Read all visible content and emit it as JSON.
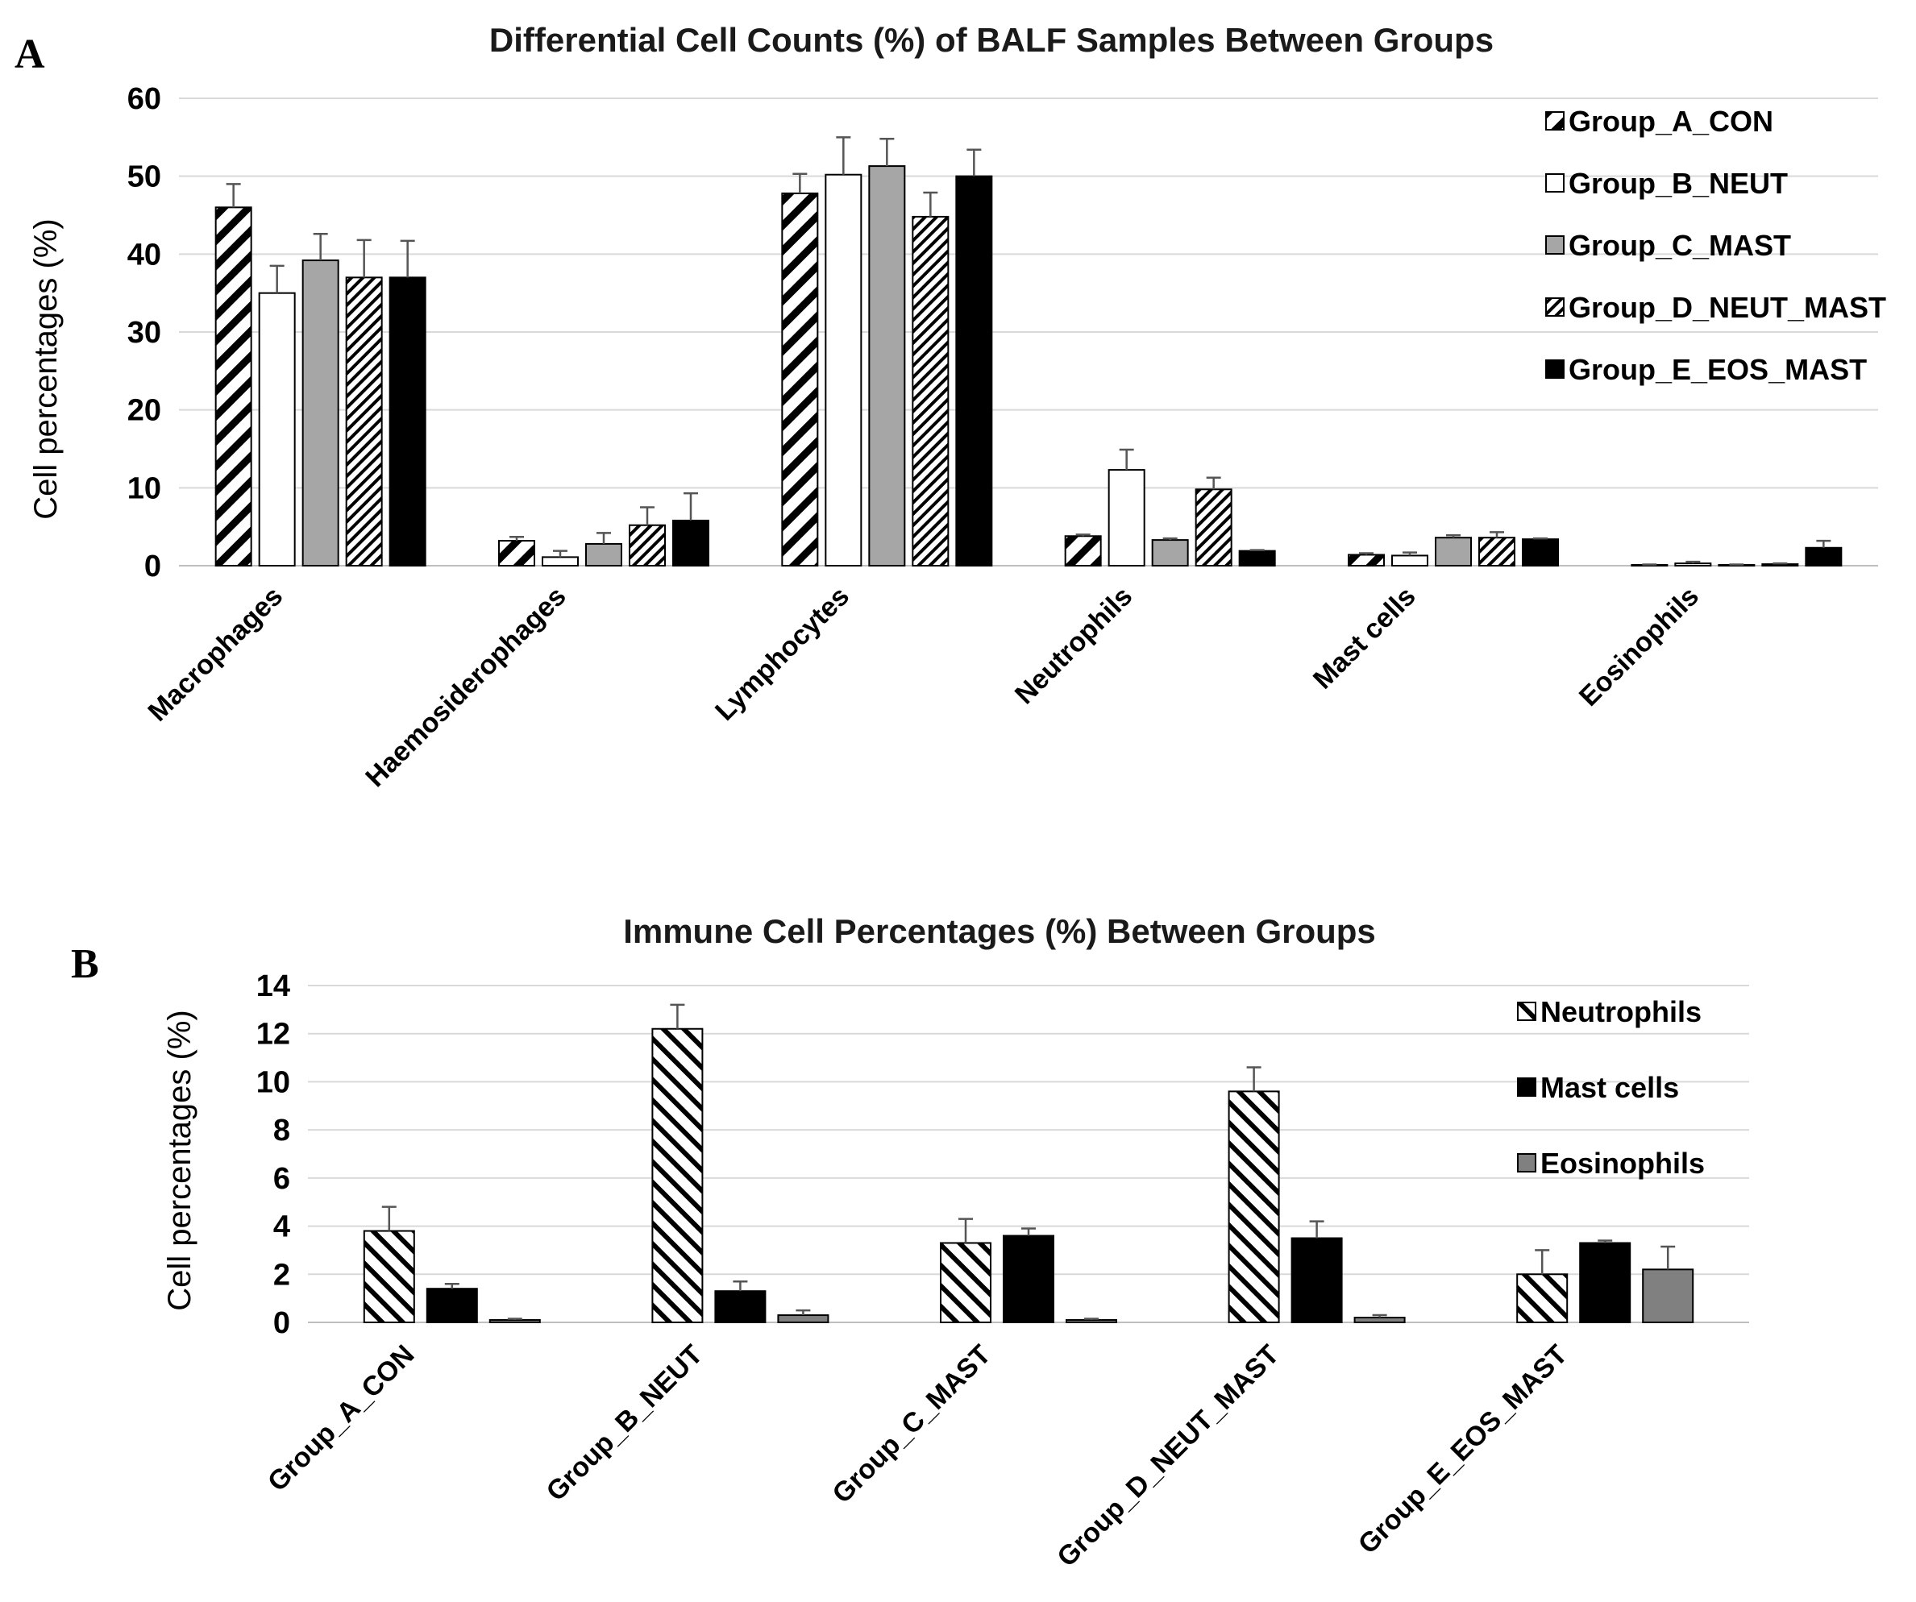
{
  "colors": {
    "group_a": "url(#hatchWide)",
    "group_b": "#ffffff",
    "group_c": "#a6a6a6",
    "group_d": "url(#hatchFine)",
    "group_e": "#000000",
    "neutrophils": "url(#hatchB)",
    "mast": "#000000",
    "eosinophils": "#808080"
  },
  "chart_data": [
    {
      "type": "bar",
      "panel_label": "A",
      "title": "Differential Cell Counts (%) of BALF Samples Between Groups",
      "ylabel": "Cell percentages (%)",
      "xlabel": "",
      "ylim": [
        0,
        60
      ],
      "yticks": [
        "0",
        "10",
        "20",
        "30",
        "40",
        "50",
        "60"
      ],
      "grid": true,
      "legend_position": "top-right",
      "categories": [
        "Macrophages",
        "Haemosiderophages",
        "Lymphocytes",
        "Neutrophils",
        "Mast cells",
        "Eosinophils"
      ],
      "series": [
        {
          "name": "Group_A_CON",
          "values": [
            46,
            3.2,
            47.8,
            3.8,
            1.4,
            0.1
          ],
          "errors": [
            3,
            0.5,
            2.5,
            0.2,
            0.2,
            0.05
          ]
        },
        {
          "name": "Group_B_NEUT",
          "values": [
            35,
            1.1,
            50.2,
            12.3,
            1.3,
            0.3
          ],
          "errors": [
            3.5,
            0.8,
            4.8,
            2.6,
            0.4,
            0.2
          ]
        },
        {
          "name": "Group_C_MAST",
          "values": [
            39.2,
            2.8,
            51.3,
            3.3,
            3.6,
            0.1
          ],
          "errors": [
            3.4,
            1.4,
            3.5,
            0.2,
            0.3,
            0.05
          ]
        },
        {
          "name": "Group_D_NEUT_MAST",
          "values": [
            37,
            5.2,
            44.8,
            9.8,
            3.6,
            0.2
          ],
          "errors": [
            4.8,
            2.3,
            3.1,
            1.5,
            0.7,
            0.1
          ]
        },
        {
          "name": "Group_E_EOS_MAST",
          "values": [
            37,
            5.8,
            50,
            1.9,
            3.4,
            2.3
          ],
          "errors": [
            4.7,
            3.5,
            3.4,
            0.1,
            0.1,
            0.9
          ]
        }
      ]
    },
    {
      "type": "bar",
      "panel_label": "B",
      "title": "Immune Cell Percentages (%) Between Groups",
      "ylabel": "Cell percentages (%)",
      "xlabel": "",
      "ylim": [
        0,
        14
      ],
      "yticks": [
        "0",
        "2",
        "4",
        "6",
        "8",
        "10",
        "12",
        "14"
      ],
      "grid": true,
      "legend_position": "top-right",
      "categories": [
        "Group_A_CON",
        "Group_B_NEUT",
        "Group_C_MAST",
        "Group_D_NEUT_MAST",
        "Group_E_EOS_MAST"
      ],
      "series": [
        {
          "name": "Neutrophils",
          "values": [
            3.8,
            12.2,
            3.3,
            9.6,
            2
          ],
          "errors": [
            1,
            1,
            1,
            1,
            1
          ]
        },
        {
          "name": "Mast cells",
          "values": [
            1.4,
            1.3,
            3.6,
            3.5,
            3.3
          ],
          "errors": [
            0.2,
            0.4,
            0.3,
            0.7,
            0.1
          ]
        },
        {
          "name": "Eosinophils",
          "values": [
            0.1,
            0.3,
            0.1,
            0.2,
            2.2
          ],
          "errors": [
            0.05,
            0.2,
            0.05,
            0.1,
            0.95
          ]
        }
      ]
    }
  ]
}
